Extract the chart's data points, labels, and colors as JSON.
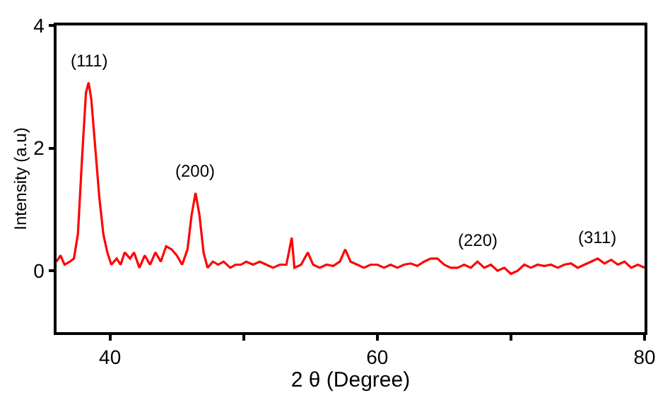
{
  "chart_data": {
    "type": "line",
    "xlabel": "2 θ (Degree)",
    "ylabel": "Intensity (a.u)",
    "xlim": [
      36,
      80
    ],
    "xticks": [
      40,
      {
        "value": 50,
        "label": null
      },
      60,
      {
        "value": 70,
        "label": null
      },
      80
    ],
    "ylim": [
      -1,
      4
    ],
    "yticks": [
      0,
      2,
      4
    ],
    "marker": "none",
    "line_style": "solid",
    "annotations": [
      {
        "text": "(111)",
        "x": 38.4,
        "y": 3.07
      },
      {
        "text": "(200)",
        "x": 46.4,
        "y": 1.27
      },
      {
        "text": "(220)",
        "x": 67.5,
        "y": 0.15
      },
      {
        "text": "(311)",
        "x": 76.5,
        "y": 0.2
      }
    ],
    "x": [
      36,
      36.3,
      36.6,
      37,
      37.3,
      37.6,
      37.9,
      38.2,
      38.4,
      38.6,
      38.9,
      39.2,
      39.5,
      39.8,
      40.1,
      40.5,
      40.8,
      41.1,
      41.5,
      41.8,
      42.2,
      42.6,
      43,
      43.4,
      43.8,
      44.2,
      44.6,
      45,
      45.4,
      45.8,
      46.1,
      46.4,
      46.7,
      47,
      47.3,
      47.7,
      48.1,
      48.5,
      49,
      49.4,
      49.8,
      50.2,
      50.7,
      51.2,
      51.7,
      52.2,
      52.7,
      53.2,
      53.6,
      53.8,
      54.3,
      54.8,
      55.2,
      55.7,
      56.2,
      56.7,
      57.2,
      57.6,
      58,
      58.5,
      59,
      59.5,
      60,
      60.5,
      61,
      61.5,
      62,
      62.5,
      63,
      63.5,
      64,
      64.5,
      65,
      65.5,
      66,
      66.5,
      67,
      67.5,
      68,
      68.5,
      69,
      69.5,
      70,
      70.5,
      71,
      71.5,
      72,
      72.5,
      73,
      73.5,
      74,
      74.5,
      75,
      75.5,
      76,
      76.5,
      77,
      77.5,
      78,
      78.5,
      79,
      79.5,
      80
    ],
    "series": [
      {
        "color": "#ff0000",
        "values": [
          0.15,
          0.25,
          0.1,
          0.15,
          0.2,
          0.6,
          1.8,
          2.9,
          3.07,
          2.8,
          2.0,
          1.2,
          0.6,
          0.3,
          0.1,
          0.2,
          0.1,
          0.3,
          0.2,
          0.3,
          0.05,
          0.25,
          0.1,
          0.3,
          0.15,
          0.4,
          0.35,
          0.25,
          0.1,
          0.35,
          0.9,
          1.27,
          0.9,
          0.3,
          0.05,
          0.15,
          0.1,
          0.15,
          0.05,
          0.1,
          0.1,
          0.15,
          0.1,
          0.15,
          0.1,
          0.05,
          0.1,
          0.1,
          0.54,
          0.05,
          0.1,
          0.3,
          0.1,
          0.05,
          0.1,
          0.08,
          0.15,
          0.35,
          0.15,
          0.1,
          0.05,
          0.1,
          0.1,
          0.05,
          0.1,
          0.05,
          0.1,
          0.12,
          0.08,
          0.15,
          0.2,
          0.2,
          0.1,
          0.05,
          0.05,
          0.1,
          0.05,
          0.15,
          0.05,
          0.1,
          0.0,
          0.05,
          -0.05,
          0.0,
          0.1,
          0.05,
          0.1,
          0.08,
          0.1,
          0.05,
          0.1,
          0.12,
          0.05,
          0.1,
          0.15,
          0.2,
          0.12,
          0.18,
          0.1,
          0.15,
          0.05,
          0.1,
          0.05
        ]
      }
    ]
  }
}
